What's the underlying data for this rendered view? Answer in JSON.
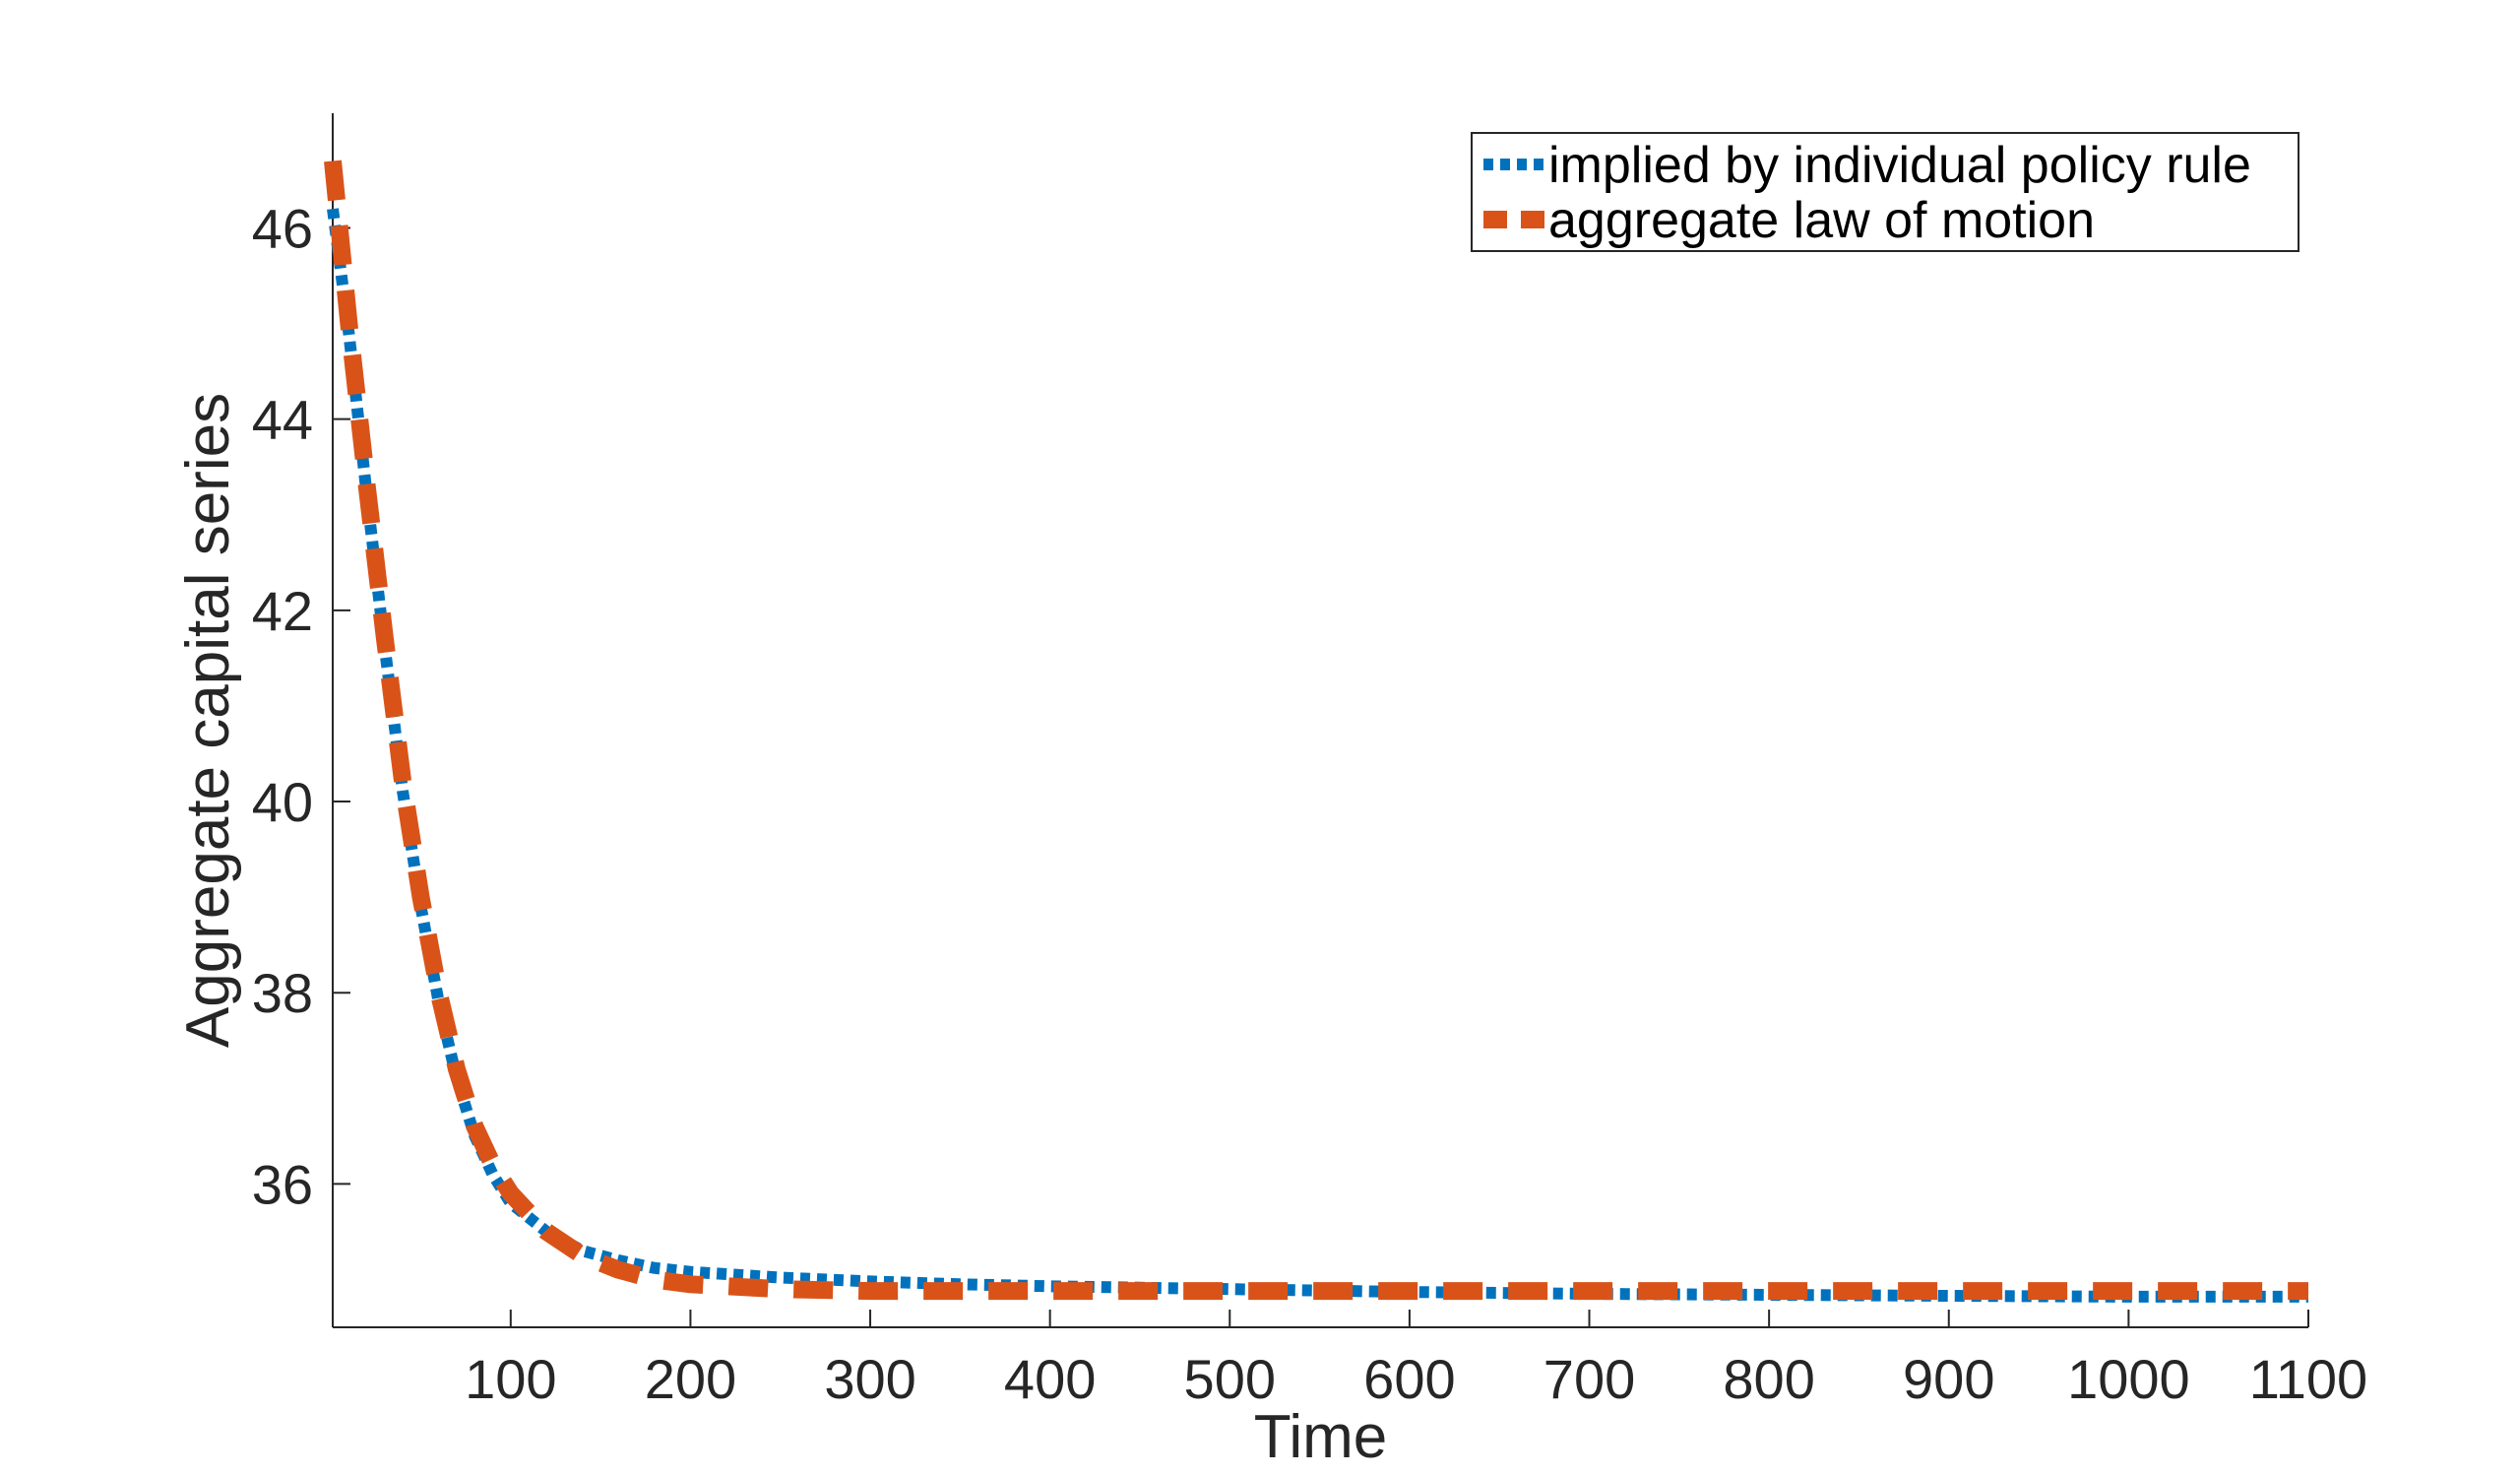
{
  "chart_data": {
    "type": "line",
    "xlabel": "Time",
    "ylabel": "Aggregate capital series",
    "xlim": [
      1,
      1100
    ],
    "ylim": [
      34.5,
      47.2
    ],
    "x_ticks": [
      100,
      200,
      300,
      400,
      500,
      600,
      700,
      800,
      900,
      1000,
      1100
    ],
    "y_ticks": [
      36,
      38,
      40,
      42,
      44,
      46
    ],
    "grid": false,
    "legend_position": "top-right",
    "series": [
      {
        "name": "implied by individual policy rule",
        "color": "#0072BD",
        "style": "dotted",
        "x": [
          1,
          10,
          20,
          30,
          40,
          50,
          60,
          70,
          80,
          90,
          100,
          120,
          140,
          160,
          180,
          200,
          250,
          300,
          350,
          400,
          500,
          600,
          700,
          800,
          900,
          1000,
          1100
        ],
        "values": [
          46.2,
          44.9,
          43.2,
          41.6,
          40.1,
          38.9,
          37.9,
          37.1,
          36.5,
          36.1,
          35.8,
          35.5,
          35.3,
          35.2,
          35.12,
          35.08,
          35.02,
          34.98,
          34.95,
          34.93,
          34.9,
          34.87,
          34.85,
          34.84,
          34.83,
          34.82,
          34.82
        ]
      },
      {
        "name": "aggregate law of motion",
        "color": "#D95319",
        "style": "dashed",
        "x": [
          1,
          10,
          20,
          30,
          40,
          50,
          60,
          70,
          80,
          90,
          100,
          120,
          140,
          160,
          180,
          200,
          250,
          300,
          350,
          400,
          500,
          600,
          700,
          800,
          900,
          1000,
          1100
        ],
        "values": [
          46.7,
          45.0,
          43.3,
          41.7,
          40.2,
          39.0,
          38.0,
          37.2,
          36.6,
          36.2,
          35.9,
          35.5,
          35.25,
          35.1,
          35.0,
          34.95,
          34.9,
          34.88,
          34.88,
          34.88,
          34.88,
          34.88,
          34.88,
          34.88,
          34.88,
          34.88,
          34.88
        ]
      }
    ]
  }
}
